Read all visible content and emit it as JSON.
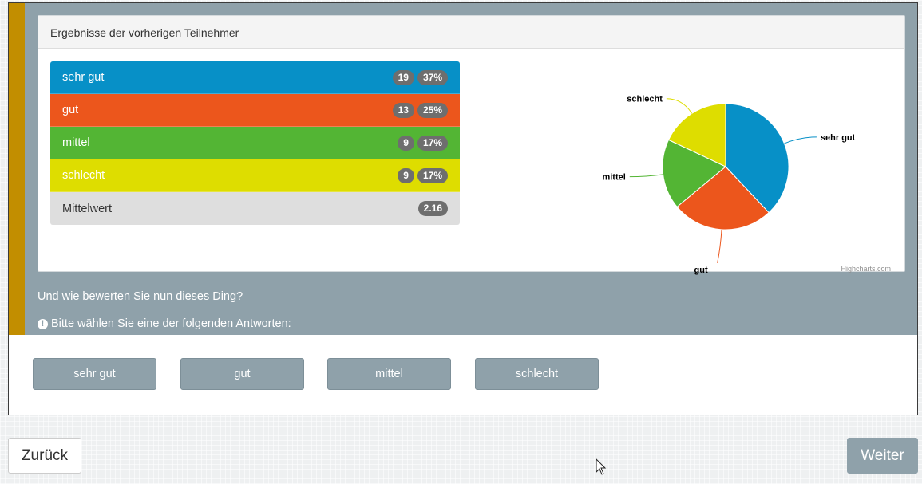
{
  "panel": {
    "title": "Ergebnisse der vorherigen Teilnehmer"
  },
  "results": [
    {
      "label": "sehr gut",
      "count": "19",
      "percent": "37%",
      "color": "#0790c7"
    },
    {
      "label": "gut",
      "count": "13",
      "percent": "25%",
      "color": "#ec561c"
    },
    {
      "label": "mittel",
      "count": "9",
      "percent": "17%",
      "color": "#53b534"
    },
    {
      "label": "schlecht",
      "count": "9",
      "percent": "17%",
      "color": "#dedd00"
    }
  ],
  "mean": {
    "label": "Mittelwert",
    "value": "2.16"
  },
  "chart_data": {
    "type": "pie",
    "slices": [
      {
        "name": "sehr gut",
        "value": 19,
        "color": "#0790c7"
      },
      {
        "name": "gut",
        "value": 13,
        "color": "#ec561c"
      },
      {
        "name": "mittel",
        "value": 9,
        "color": "#53b534"
      },
      {
        "name": "schlecht",
        "value": 9,
        "color": "#dedd00"
      }
    ],
    "credit": "Highcharts.com"
  },
  "question": {
    "text": "Und wie bewerten Sie nun dieses Ding?",
    "hint": "Bitte wählen Sie eine der folgenden Antworten:"
  },
  "answers": [
    "sehr gut",
    "gut",
    "mittel",
    "schlecht"
  ],
  "nav": {
    "back": "Zurück",
    "next": "Weiter"
  },
  "colors": {
    "header_bg": "#8fa1aa",
    "accent": "#c28e00"
  }
}
